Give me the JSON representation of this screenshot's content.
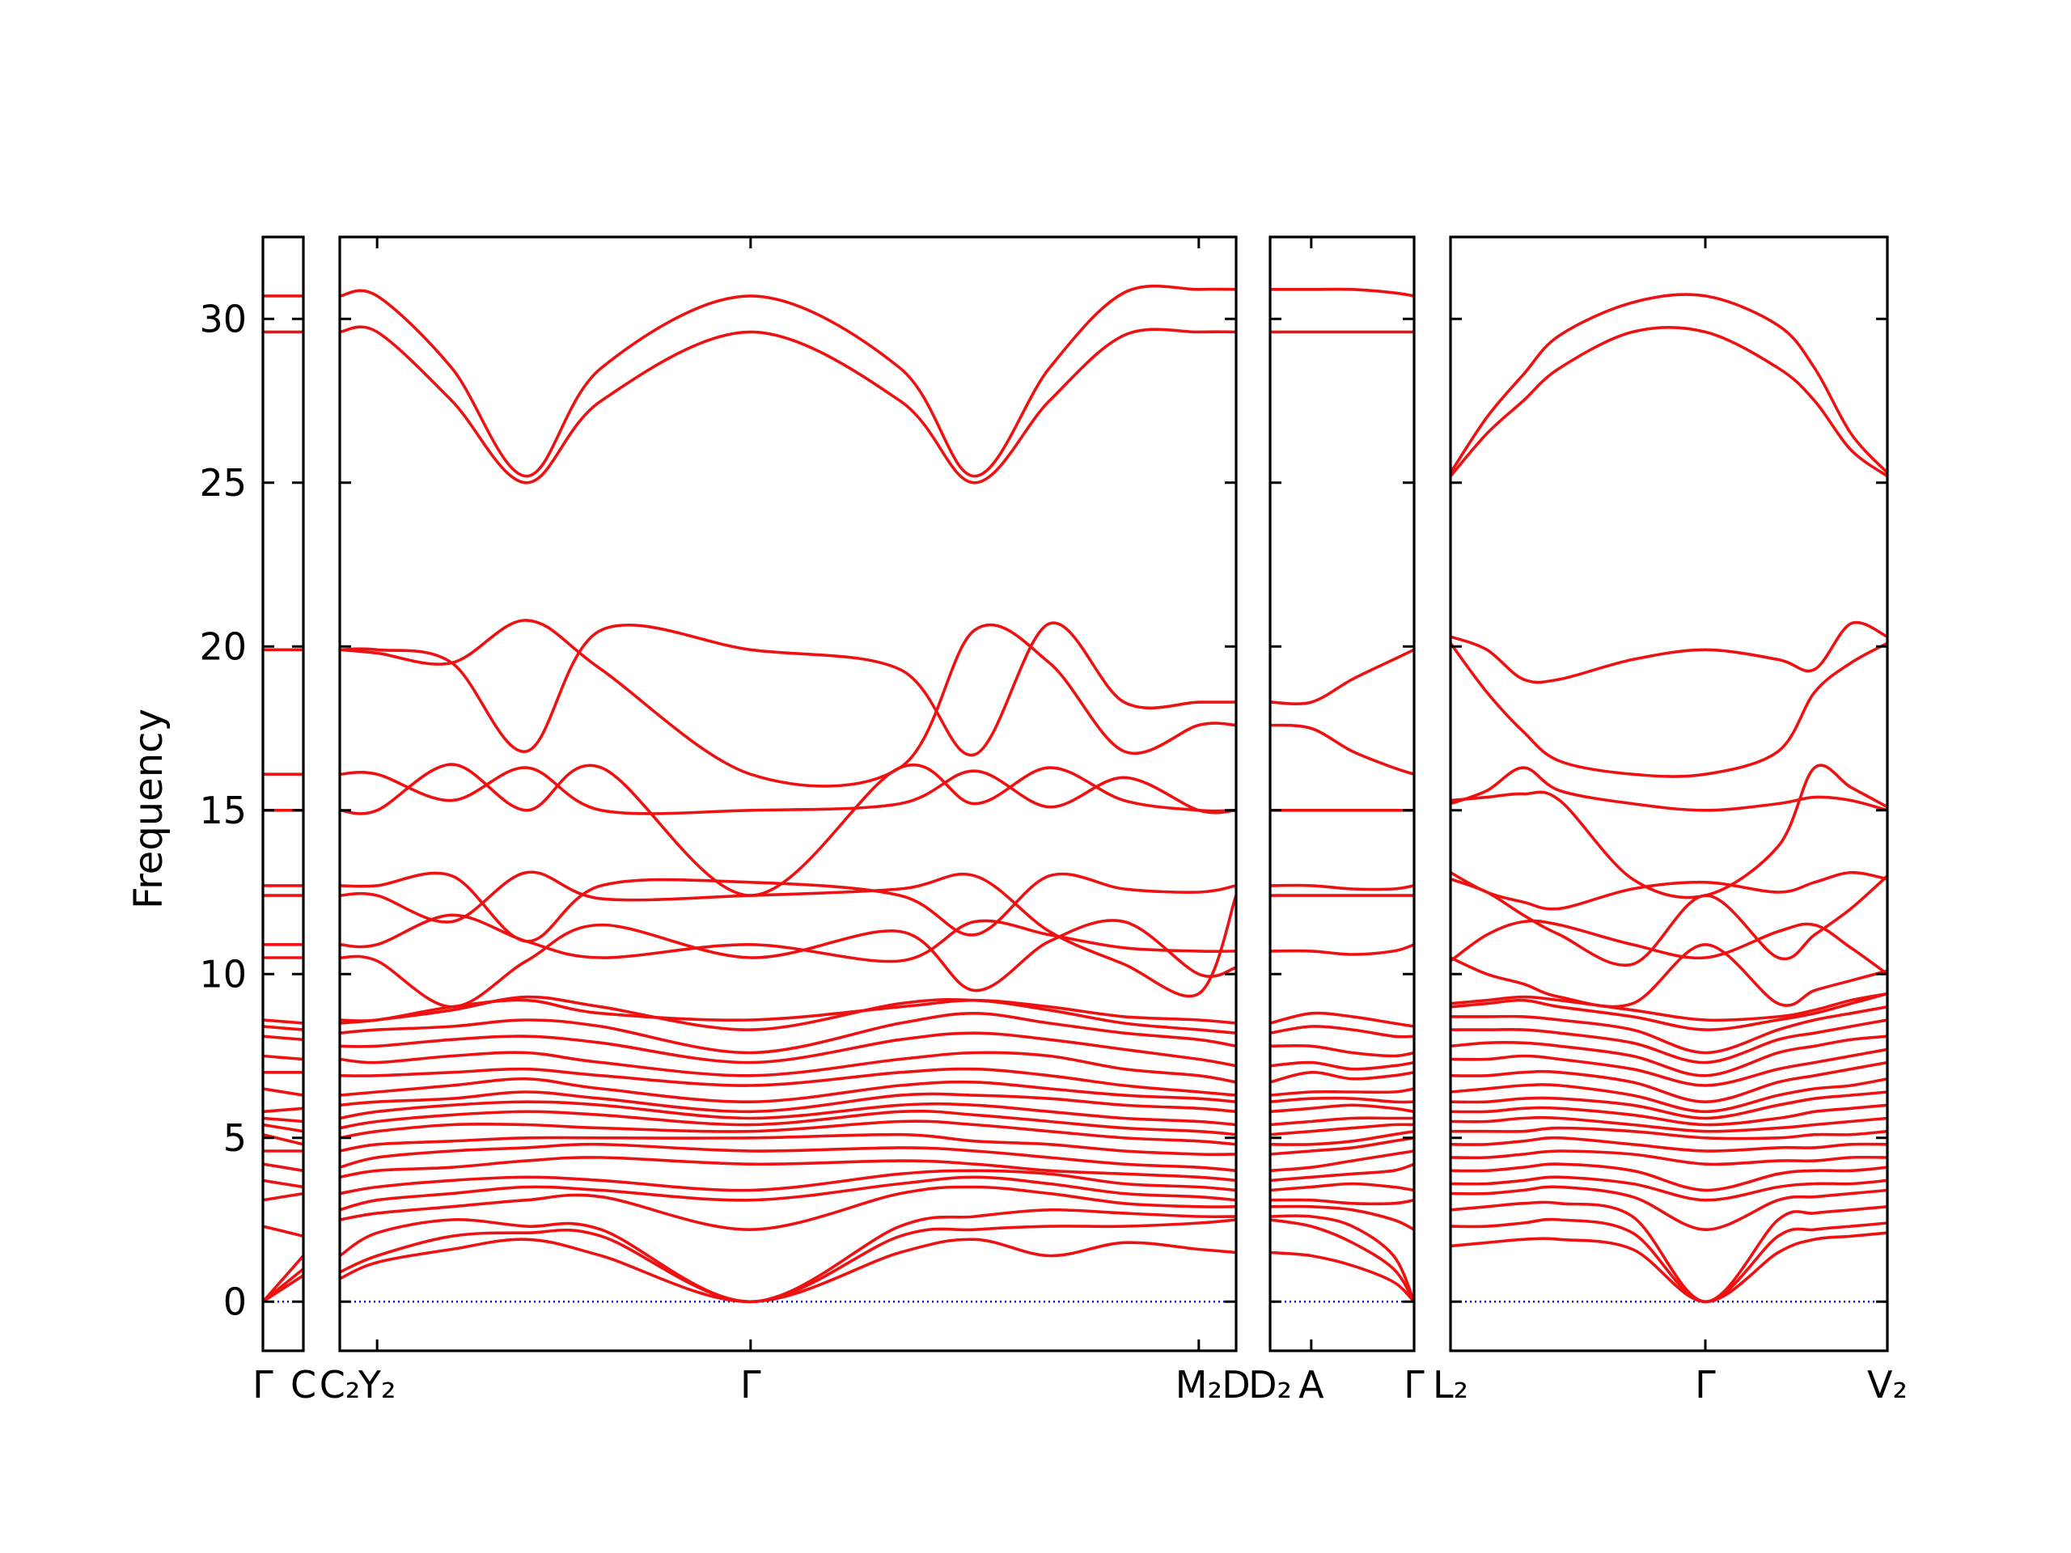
{
  "chart_data": {
    "type": "line",
    "title": "",
    "ylabel": "Frequency",
    "ylim": [
      -1.5,
      32.5
    ],
    "yticks": [
      0,
      5,
      10,
      15,
      20,
      25,
      30
    ],
    "y_tick_labels": [
      "0",
      "5",
      "10",
      "15",
      "20",
      "25",
      "30"
    ],
    "grid": false,
    "legend": "none",
    "colors": {
      "bands": "#ee1111",
      "zero_line": "#0000cc",
      "frame": "#000000"
    },
    "panels": [
      {
        "x": [
          0,
          1
        ],
        "tick_labels": [
          {
            "x": 0,
            "label": "Γ"
          },
          {
            "x": 1,
            "label": "C"
          }
        ],
        "bands": [
          [
            0.0,
            1.4
          ],
          [
            0.0,
            1.0
          ],
          [
            0.0,
            0.8
          ],
          [
            2.3,
            2.0
          ],
          [
            3.1,
            3.3
          ],
          [
            3.7,
            3.5
          ],
          [
            4.2,
            4.0
          ],
          [
            4.6,
            4.6
          ],
          [
            5.1,
            4.8
          ],
          [
            5.4,
            5.2
          ],
          [
            5.6,
            5.5
          ],
          [
            5.8,
            5.9
          ],
          [
            6.5,
            6.3
          ],
          [
            7.0,
            7.0
          ],
          [
            7.5,
            7.4
          ],
          [
            8.1,
            8.0
          ],
          [
            8.4,
            8.3
          ],
          [
            8.6,
            8.5
          ],
          [
            10.5,
            10.5
          ],
          [
            10.9,
            10.9
          ],
          [
            12.4,
            12.4
          ],
          [
            12.7,
            12.7
          ],
          [
            15.0,
            15.0
          ],
          [
            16.1,
            16.1
          ],
          [
            19.9,
            19.9
          ],
          [
            29.6,
            29.6
          ],
          [
            30.7,
            30.7
          ]
        ]
      },
      {
        "x": [
          0,
          0.5,
          1.5,
          2.5,
          3.5,
          5.5,
          7.5,
          8.5,
          9.5,
          10.5,
          11.5,
          12
        ],
        "tick_labels": [
          {
            "x": 0,
            "label": "C₂"
          },
          {
            "x": 0.5,
            "label": "Y₂"
          },
          {
            "x": 5.5,
            "label": "Γ"
          },
          {
            "x": 11.5,
            "label": "M₂"
          },
          {
            "x": 12,
            "label": "D"
          }
        ],
        "bands": [
          [
            0.7,
            1.2,
            1.6,
            1.9,
            1.4,
            0.0,
            1.5,
            1.9,
            1.4,
            1.8,
            1.6,
            1.5
          ],
          [
            0.9,
            1.4,
            2.0,
            2.1,
            2.0,
            0.0,
            2.0,
            2.2,
            2.3,
            2.3,
            2.4,
            2.5
          ],
          [
            1.4,
            2.1,
            2.5,
            2.3,
            2.2,
            0.0,
            2.3,
            2.6,
            2.8,
            2.7,
            2.6,
            2.6
          ],
          [
            2.5,
            2.7,
            2.9,
            3.1,
            3.2,
            2.2,
            3.3,
            3.5,
            3.3,
            3.0,
            2.9,
            2.9
          ],
          [
            2.8,
            3.1,
            3.3,
            3.5,
            3.4,
            3.1,
            3.6,
            3.8,
            3.6,
            3.3,
            3.2,
            3.1
          ],
          [
            3.3,
            3.5,
            3.7,
            3.8,
            3.7,
            3.4,
            3.9,
            4.0,
            3.9,
            3.6,
            3.5,
            3.4
          ],
          [
            3.8,
            4.0,
            4.1,
            4.3,
            4.4,
            4.2,
            4.3,
            4.2,
            4.0,
            3.9,
            3.8,
            3.7
          ],
          [
            4.1,
            4.4,
            4.6,
            4.7,
            4.8,
            4.6,
            4.7,
            4.6,
            4.4,
            4.2,
            4.1,
            4.0
          ],
          [
            4.6,
            4.8,
            4.9,
            5.0,
            5.0,
            5.0,
            5.1,
            4.9,
            4.8,
            4.6,
            4.5,
            4.5
          ],
          [
            5.0,
            5.2,
            5.4,
            5.4,
            5.3,
            5.2,
            5.5,
            5.4,
            5.2,
            5.0,
            4.9,
            4.8
          ],
          [
            5.3,
            5.5,
            5.7,
            5.8,
            5.7,
            5.4,
            5.8,
            5.7,
            5.5,
            5.3,
            5.2,
            5.1
          ],
          [
            5.6,
            5.8,
            6.0,
            6.1,
            6.0,
            5.6,
            6.0,
            6.0,
            5.8,
            5.6,
            5.5,
            5.4
          ],
          [
            6.0,
            6.1,
            6.2,
            6.4,
            6.2,
            5.8,
            6.3,
            6.3,
            6.2,
            6.0,
            5.9,
            5.8
          ],
          [
            6.3,
            6.4,
            6.6,
            6.8,
            6.5,
            6.1,
            6.6,
            6.7,
            6.5,
            6.3,
            6.2,
            6.1
          ],
          [
            6.9,
            6.9,
            7.0,
            7.1,
            6.9,
            6.6,
            7.0,
            7.1,
            6.9,
            6.6,
            6.4,
            6.3
          ],
          [
            7.4,
            7.3,
            7.5,
            7.6,
            7.3,
            6.9,
            7.4,
            7.6,
            7.5,
            7.1,
            6.9,
            6.7
          ],
          [
            7.8,
            7.8,
            8.0,
            8.1,
            7.9,
            7.3,
            8.0,
            8.2,
            8.0,
            7.7,
            7.4,
            7.2
          ],
          [
            8.2,
            8.3,
            8.4,
            8.6,
            8.4,
            7.6,
            8.5,
            8.8,
            8.5,
            8.2,
            8.0,
            7.8
          ],
          [
            8.5,
            8.6,
            8.9,
            9.3,
            9.0,
            8.3,
            9.1,
            9.2,
            8.9,
            8.5,
            8.3,
            8.2
          ],
          [
            8.6,
            8.6,
            9.0,
            9.2,
            8.8,
            8.6,
            9.0,
            9.2,
            9.0,
            8.7,
            8.6,
            8.5
          ],
          [
            10.5,
            10.4,
            9.0,
            10.4,
            11.5,
            10.5,
            11.3,
            9.5,
            11.0,
            11.6,
            10.0,
            10.2
          ],
          [
            10.9,
            10.9,
            11.8,
            11.0,
            10.5,
            10.9,
            10.4,
            11.6,
            11.2,
            10.8,
            10.7,
            10.7
          ],
          [
            12.4,
            12.4,
            11.6,
            13.1,
            12.3,
            12.4,
            12.6,
            13.0,
            11.3,
            10.3,
            9.4,
            12.4
          ],
          [
            12.7,
            12.7,
            13.0,
            11.0,
            12.7,
            12.8,
            12.4,
            11.2,
            13.0,
            12.6,
            12.5,
            12.7
          ],
          [
            15.0,
            15.0,
            16.4,
            15.0,
            16.3,
            12.4,
            16.3,
            15.2,
            16.3,
            15.3,
            15.0,
            15.0
          ],
          [
            16.1,
            16.1,
            15.3,
            16.3,
            15.0,
            15.0,
            15.2,
            16.2,
            15.1,
            16.0,
            15.0,
            15.0
          ],
          [
            19.9,
            19.8,
            19.5,
            20.8,
            19.3,
            16.1,
            16.3,
            20.5,
            19.5,
            16.8,
            17.6,
            17.6
          ],
          [
            19.9,
            19.9,
            19.5,
            16.8,
            20.5,
            19.9,
            19.3,
            16.7,
            20.7,
            18.3,
            18.3,
            18.3
          ],
          [
            29.6,
            29.6,
            27.5,
            25.0,
            27.5,
            29.6,
            27.5,
            25.0,
            27.5,
            29.5,
            29.6,
            29.6
          ],
          [
            30.7,
            30.7,
            28.5,
            25.2,
            28.5,
            30.7,
            28.5,
            25.2,
            28.5,
            30.8,
            30.9,
            30.9
          ]
        ]
      },
      {
        "x": [
          0,
          1,
          2,
          3,
          3.5
        ],
        "tick_labels": [
          {
            "x": 0,
            "label": "D₂"
          },
          {
            "x": 1,
            "label": "A"
          },
          {
            "x": 3.5,
            "label": "Γ"
          }
        ],
        "bands": [
          [
            1.5,
            1.4,
            1.1,
            0.6,
            0.0
          ],
          [
            2.5,
            2.3,
            1.8,
            1.0,
            0.0
          ],
          [
            2.6,
            2.6,
            2.3,
            1.4,
            0.0
          ],
          [
            2.9,
            2.9,
            2.8,
            2.5,
            2.2
          ],
          [
            3.1,
            3.1,
            3.0,
            3.0,
            3.1
          ],
          [
            3.4,
            3.5,
            3.6,
            3.5,
            3.4
          ],
          [
            3.7,
            3.8,
            3.9,
            4.0,
            4.2
          ],
          [
            4.0,
            4.1,
            4.3,
            4.5,
            4.6
          ],
          [
            4.5,
            4.6,
            4.7,
            4.9,
            5.0
          ],
          [
            4.8,
            4.8,
            4.9,
            5.1,
            5.2
          ],
          [
            5.1,
            5.2,
            5.3,
            5.4,
            5.4
          ],
          [
            5.4,
            5.5,
            5.6,
            5.6,
            5.6
          ],
          [
            5.8,
            5.9,
            6.0,
            5.9,
            5.8
          ],
          [
            6.1,
            6.2,
            6.2,
            6.1,
            6.1
          ],
          [
            6.3,
            6.4,
            6.4,
            6.4,
            6.5
          ],
          [
            6.7,
            7.0,
            6.8,
            6.9,
            7.0
          ],
          [
            7.2,
            7.3,
            7.1,
            7.2,
            7.3
          ],
          [
            7.8,
            7.8,
            7.6,
            7.5,
            7.6
          ],
          [
            8.2,
            8.4,
            8.3,
            8.1,
            8.1
          ],
          [
            8.5,
            8.8,
            8.7,
            8.5,
            8.4
          ],
          [
            10.7,
            10.7,
            10.6,
            10.7,
            10.9
          ],
          [
            12.4,
            12.4,
            12.4,
            12.4,
            12.4
          ],
          [
            12.7,
            12.7,
            12.6,
            12.6,
            12.7
          ],
          [
            15.0,
            15.0,
            15.0,
            15.0,
            15.0
          ],
          [
            17.6,
            17.5,
            16.8,
            16.3,
            16.1
          ],
          [
            18.3,
            18.3,
            19.0,
            19.6,
            19.9
          ],
          [
            29.6,
            29.6,
            29.6,
            29.6,
            29.6
          ],
          [
            30.9,
            30.9,
            30.9,
            30.8,
            30.7
          ]
        ]
      },
      {
        "x": [
          0,
          0.5,
          1,
          1.5,
          2.5,
          3.5,
          4.5,
          5,
          5.5,
          6
        ],
        "tick_labels": [
          {
            "x": 0,
            "label": "L₂"
          },
          {
            "x": 3.5,
            "label": "Γ"
          },
          {
            "x": 6,
            "label": "V₂"
          }
        ],
        "bands": [
          [
            1.7,
            1.8,
            1.9,
            1.9,
            1.6,
            0.0,
            1.5,
            1.9,
            2.0,
            2.1
          ],
          [
            2.3,
            2.3,
            2.4,
            2.5,
            2.1,
            0.0,
            2.0,
            2.2,
            2.3,
            2.4
          ],
          [
            2.8,
            2.9,
            3.0,
            3.0,
            2.6,
            0.0,
            2.5,
            2.7,
            2.8,
            2.9
          ],
          [
            3.3,
            3.3,
            3.4,
            3.5,
            3.2,
            2.2,
            3.1,
            3.2,
            3.3,
            3.4
          ],
          [
            3.6,
            3.6,
            3.7,
            3.8,
            3.6,
            3.1,
            3.5,
            3.6,
            3.6,
            3.7
          ],
          [
            4.0,
            4.0,
            4.1,
            4.2,
            4.0,
            3.4,
            3.9,
            4.0,
            4.0,
            4.1
          ],
          [
            4.4,
            4.4,
            4.5,
            4.6,
            4.5,
            4.2,
            4.3,
            4.3,
            4.4,
            4.4
          ],
          [
            4.8,
            4.8,
            4.9,
            5.0,
            4.8,
            4.6,
            4.7,
            4.7,
            4.8,
            4.8
          ],
          [
            5.2,
            5.2,
            5.2,
            5.3,
            5.2,
            5.0,
            5.0,
            5.1,
            5.1,
            5.2
          ],
          [
            5.5,
            5.5,
            5.6,
            5.6,
            5.4,
            5.2,
            5.3,
            5.4,
            5.5,
            5.6
          ],
          [
            5.8,
            5.8,
            5.9,
            5.9,
            5.7,
            5.4,
            5.6,
            5.8,
            5.9,
            6.0
          ],
          [
            6.1,
            6.1,
            6.2,
            6.2,
            6.0,
            5.6,
            6.0,
            6.2,
            6.3,
            6.4
          ],
          [
            6.4,
            6.5,
            6.6,
            6.6,
            6.3,
            5.8,
            6.3,
            6.5,
            6.6,
            6.8
          ],
          [
            6.9,
            6.9,
            7.0,
            7.0,
            6.7,
            6.1,
            6.7,
            6.9,
            7.1,
            7.3
          ],
          [
            7.4,
            7.4,
            7.5,
            7.4,
            7.1,
            6.6,
            7.1,
            7.3,
            7.5,
            7.7
          ],
          [
            7.8,
            7.9,
            7.9,
            7.8,
            7.5,
            6.9,
            7.6,
            7.8,
            8.0,
            8.1
          ],
          [
            8.3,
            8.3,
            8.3,
            8.2,
            7.9,
            7.3,
            8.0,
            8.2,
            8.4,
            8.6
          ],
          [
            8.7,
            8.7,
            8.7,
            8.6,
            8.3,
            7.6,
            8.3,
            8.6,
            8.8,
            9.0
          ],
          [
            9.0,
            9.1,
            9.2,
            9.0,
            8.7,
            8.3,
            8.6,
            8.8,
            9.1,
            9.4
          ],
          [
            9.1,
            9.2,
            9.3,
            9.2,
            8.9,
            8.6,
            8.7,
            8.9,
            9.2,
            9.4
          ],
          [
            10.4,
            11.2,
            11.6,
            11.5,
            10.9,
            10.5,
            11.3,
            11.5,
            10.8,
            10.0
          ],
          [
            10.5,
            10.0,
            9.7,
            9.3,
            9.1,
            10.9,
            9.1,
            9.5,
            9.8,
            10.1
          ],
          [
            12.9,
            12.5,
            11.8,
            11.2,
            10.3,
            12.4,
            10.5,
            11.2,
            12.0,
            13.0
          ],
          [
            13.1,
            12.5,
            12.2,
            12.0,
            12.6,
            12.8,
            12.5,
            12.8,
            13.1,
            12.9
          ],
          [
            15.2,
            15.6,
            16.3,
            15.6,
            15.2,
            15.0,
            15.2,
            15.4,
            15.3,
            15.0
          ],
          [
            15.3,
            15.4,
            15.5,
            15.3,
            12.9,
            12.4,
            13.9,
            16.3,
            15.7,
            15.1
          ],
          [
            20.1,
            18.6,
            17.4,
            16.5,
            16.1,
            16.1,
            16.8,
            18.6,
            19.5,
            20.1
          ],
          [
            20.3,
            19.9,
            19.0,
            19.0,
            19.6,
            19.9,
            19.6,
            19.3,
            20.7,
            20.3
          ],
          [
            25.2,
            26.5,
            27.5,
            28.5,
            29.6,
            29.6,
            28.5,
            27.5,
            26.0,
            25.2
          ],
          [
            25.3,
            27.0,
            28.3,
            29.5,
            30.5,
            30.7,
            29.8,
            28.5,
            26.5,
            25.3
          ]
        ]
      }
    ]
  }
}
